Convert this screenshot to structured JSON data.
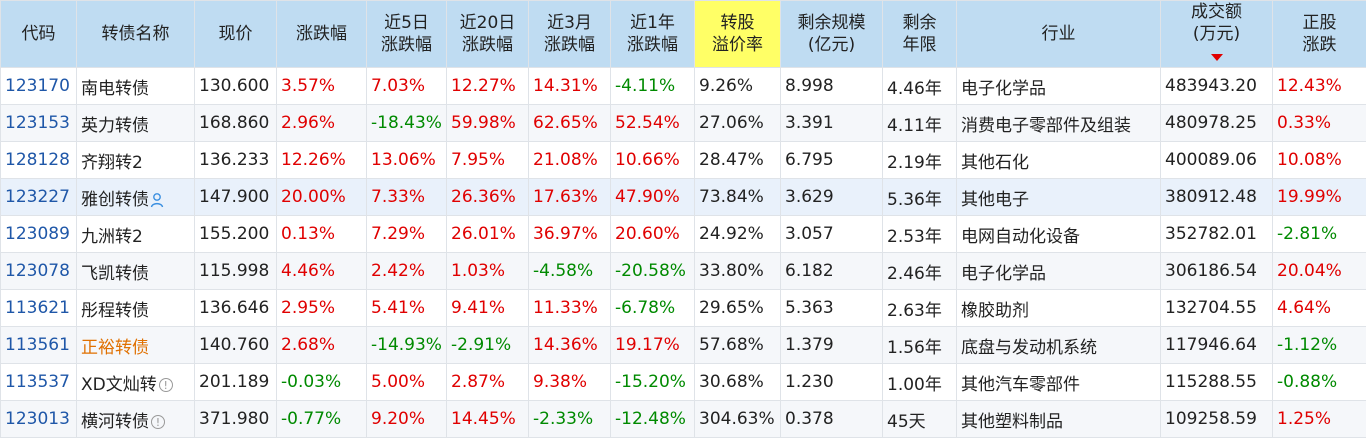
{
  "headers": [
    {
      "label": "代码"
    },
    {
      "label": "转债名称"
    },
    {
      "label": "现价"
    },
    {
      "label": "涨跌幅"
    },
    {
      "label": "近5日\n涨跌幅"
    },
    {
      "label": "近20日\n涨跌幅"
    },
    {
      "label": "近3月\n涨跌幅"
    },
    {
      "label": "近1年\n涨跌幅"
    },
    {
      "label": "转股\n溢价率",
      "highlight": true
    },
    {
      "label": "剩余规模\n(亿元)"
    },
    {
      "label": "剩余\n年限"
    },
    {
      "label": "行业"
    },
    {
      "label": "成交额\n(万元)",
      "sorted": "desc"
    },
    {
      "label": "正股\n涨跌"
    }
  ],
  "rows": [
    {
      "code": "123170",
      "name": "南电转债",
      "price": "130.600",
      "chg": "3.57%",
      "chg5": "7.03%",
      "chg20": "12.27%",
      "chg3m": "14.31%",
      "chg1y": "-4.11%",
      "premium": "9.26%",
      "scale": "8.998",
      "years": "4.46年",
      "industry": "电子化学品",
      "turnover": "483943.20",
      "stock_chg": "12.43%"
    },
    {
      "code": "123153",
      "name": "英力转债",
      "price": "168.860",
      "chg": "2.96%",
      "chg5": "-18.43%",
      "chg20": "59.98%",
      "chg3m": "62.65%",
      "chg1y": "52.54%",
      "premium": "27.06%",
      "scale": "3.391",
      "years": "4.11年",
      "industry": "消费电子零部件及组装",
      "turnover": "480978.25",
      "stock_chg": "0.33%"
    },
    {
      "code": "128128",
      "name": "齐翔转2",
      "price": "136.233",
      "chg": "12.26%",
      "chg5": "13.06%",
      "chg20": "7.95%",
      "chg3m": "21.08%",
      "chg1y": "10.66%",
      "premium": "28.47%",
      "scale": "6.795",
      "years": "2.19年",
      "industry": "其他石化",
      "turnover": "400089.06",
      "stock_chg": "10.08%"
    },
    {
      "code": "123227",
      "name": "雅创转债",
      "icon": "user-icon",
      "price": "147.900",
      "chg": "20.00%",
      "chg5": "7.33%",
      "chg20": "26.36%",
      "chg3m": "17.63%",
      "chg1y": "47.90%",
      "premium": "73.84%",
      "scale": "3.629",
      "years": "5.36年",
      "industry": "其他电子",
      "turnover": "380912.48",
      "stock_chg": "19.99%"
    },
    {
      "code": "123089",
      "name": "九洲转2",
      "price": "155.200",
      "chg": "0.13%",
      "chg5": "7.29%",
      "chg20": "26.01%",
      "chg3m": "36.97%",
      "chg1y": "20.60%",
      "premium": "24.92%",
      "scale": "3.057",
      "years": "2.53年",
      "industry": "电网自动化设备",
      "turnover": "352782.01",
      "stock_chg": "-2.81%"
    },
    {
      "code": "123078",
      "name": "飞凯转债",
      "price": "115.998",
      "chg": "4.46%",
      "chg5": "2.42%",
      "chg20": "1.03%",
      "chg3m": "-4.58%",
      "chg1y": "-20.58%",
      "premium": "33.80%",
      "scale": "6.182",
      "years": "2.46年",
      "industry": "电子化学品",
      "turnover": "306186.54",
      "stock_chg": "20.04%"
    },
    {
      "code": "113621",
      "name": "彤程转债",
      "price": "136.646",
      "chg": "2.95%",
      "chg5": "5.41%",
      "chg20": "9.41%",
      "chg3m": "11.33%",
      "chg1y": "-6.78%",
      "premium": "29.65%",
      "scale": "5.363",
      "years": "2.63年",
      "industry": "橡胶助剂",
      "turnover": "132704.55",
      "stock_chg": "4.64%"
    },
    {
      "code": "113561",
      "name": "正裕转债",
      "name_color": "orange",
      "price": "140.760",
      "chg": "2.68%",
      "chg5": "-14.93%",
      "chg20": "-2.91%",
      "chg3m": "14.36%",
      "chg1y": "19.17%",
      "premium": "57.68%",
      "scale": "1.379",
      "years": "1.56年",
      "industry": "底盘与发动机系统",
      "turnover": "117946.64",
      "stock_chg": "-1.12%"
    },
    {
      "code": "113537",
      "name": "XD文灿转",
      "icon": "info-icon",
      "price": "201.189",
      "chg": "-0.03%",
      "chg5": "5.00%",
      "chg20": "2.87%",
      "chg3m": "9.38%",
      "chg1y": "-15.20%",
      "premium": "30.68%",
      "scale": "1.230",
      "years": "1.00年",
      "industry": "其他汽车零部件",
      "turnover": "115288.55",
      "stock_chg": "-0.88%"
    },
    {
      "code": "123013",
      "name": "横河转债",
      "icon": "info-icon",
      "price": "371.980",
      "chg": "-0.77%",
      "chg5": "9.20%",
      "chg20": "14.45%",
      "chg3m": "-2.33%",
      "chg1y": "-12.48%",
      "premium": "304.63%",
      "scale": "0.378",
      "years": "45天",
      "industry": "其他塑料制品",
      "turnover": "109258.59",
      "stock_chg": "1.25%"
    }
  ],
  "colors": {
    "up": "#e00000",
    "down": "#008a00",
    "header_bg": "#bfdcf2",
    "highlight": "#ffff66",
    "link": "#1f57a8",
    "special_name": "#e07000"
  }
}
